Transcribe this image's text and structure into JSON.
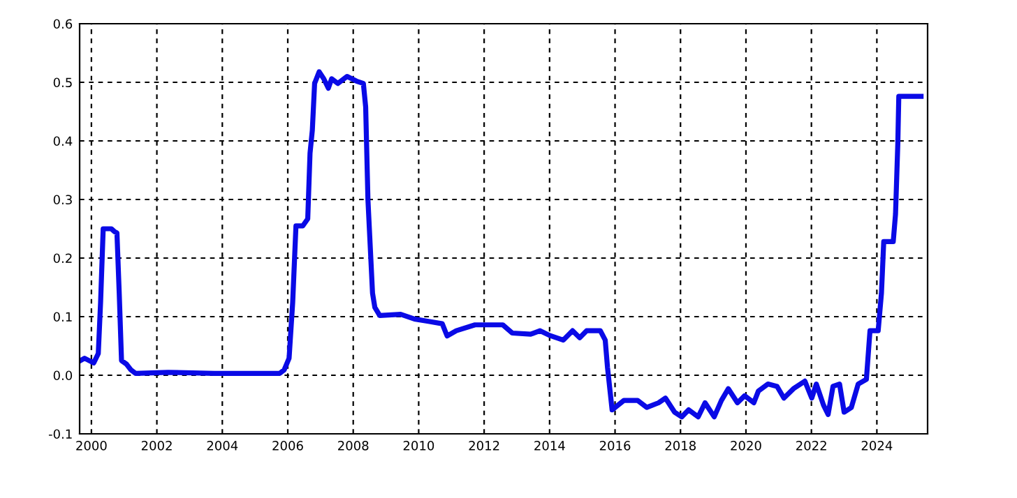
{
  "chart_data": {
    "type": "line",
    "x": [
      1999.66,
      1999.79,
      2000.07,
      2000.21,
      2000.28,
      2000.36,
      2000.61,
      2000.71,
      2000.78,
      2000.85,
      2000.92,
      2001.07,
      2001.21,
      2001.35,
      2002.34,
      2003.76,
      2005.75,
      2005.89,
      2006.04,
      2006.15,
      2006.25,
      2006.46,
      2006.61,
      2006.68,
      2006.75,
      2006.82,
      2006.96,
      2007.1,
      2007.24,
      2007.34,
      2007.53,
      2007.81,
      2008.1,
      2008.31,
      2008.38,
      2008.45,
      2008.59,
      2008.66,
      2008.81,
      2009.45,
      2009.87,
      2010.3,
      2010.72,
      2010.87,
      2011.15,
      2011.72,
      2012.57,
      2012.86,
      2013.42,
      2013.71,
      2014.0,
      2014.42,
      2014.7,
      2014.92,
      2015.13,
      2015.55,
      2015.7,
      2015.77,
      2015.91,
      2016.27,
      2016.69,
      2016.97,
      2017.33,
      2017.54,
      2017.82,
      2018.04,
      2018.25,
      2018.54,
      2018.75,
      2019.03,
      2019.25,
      2019.46,
      2019.74,
      2019.96,
      2020.24,
      2020.38,
      2020.67,
      2020.95,
      2021.16,
      2021.45,
      2021.8,
      2022.01,
      2022.15,
      2022.37,
      2022.51,
      2022.66,
      2022.86,
      2023.0,
      2023.22,
      2023.43,
      2023.68,
      2023.79,
      2024.04,
      2024.14,
      2024.21,
      2024.5,
      2024.57,
      2024.64,
      2024.67,
      2025.35
    ],
    "series": [
      {
        "color": "#0a0ae6",
        "values": [
          0.025,
          0.029,
          0.021,
          0.037,
          0.124,
          0.25,
          0.25,
          0.245,
          0.243,
          0.14,
          0.025,
          0.019,
          0.009,
          0.003,
          0.005,
          0.003,
          0.003,
          0.009,
          0.029,
          0.124,
          0.255,
          0.255,
          0.267,
          0.379,
          0.418,
          0.498,
          0.518,
          0.506,
          0.49,
          0.506,
          0.498,
          0.51,
          0.502,
          0.498,
          0.458,
          0.299,
          0.14,
          0.116,
          0.102,
          0.104,
          0.096,
          0.092,
          0.088,
          0.067,
          0.076,
          0.086,
          0.086,
          0.072,
          0.07,
          0.076,
          0.068,
          0.06,
          0.076,
          0.064,
          0.076,
          0.076,
          0.06,
          0.013,
          -0.059,
          -0.043,
          -0.043,
          -0.055,
          -0.047,
          -0.039,
          -0.063,
          -0.071,
          -0.059,
          -0.071,
          -0.047,
          -0.071,
          -0.043,
          -0.023,
          -0.047,
          -0.035,
          -0.047,
          -0.027,
          -0.015,
          -0.019,
          -0.039,
          -0.023,
          -0.01,
          -0.039,
          -0.015,
          -0.051,
          -0.067,
          -0.019,
          -0.015,
          -0.063,
          -0.055,
          -0.015,
          -0.007,
          0.076,
          0.076,
          0.14,
          0.228,
          0.228,
          0.275,
          0.395,
          0.476,
          0.476
        ]
      }
    ],
    "xlim": [
      1999.64,
      2025.55
    ],
    "xticks": [
      2000,
      2002,
      2004,
      2006,
      2008,
      2010,
      2012,
      2014,
      2016,
      2018,
      2020,
      2022,
      2024
    ],
    "ylim": [
      -0.1,
      0.6
    ],
    "yticks": [
      -0.1,
      {
        "value": 0,
        "label": "0.0"
      },
      0.1,
      0.2,
      0.3,
      0.4,
      0.5,
      0.6
    ],
    "grid": true,
    "line_style": "solid",
    "marker": "none",
    "legend": false
  }
}
